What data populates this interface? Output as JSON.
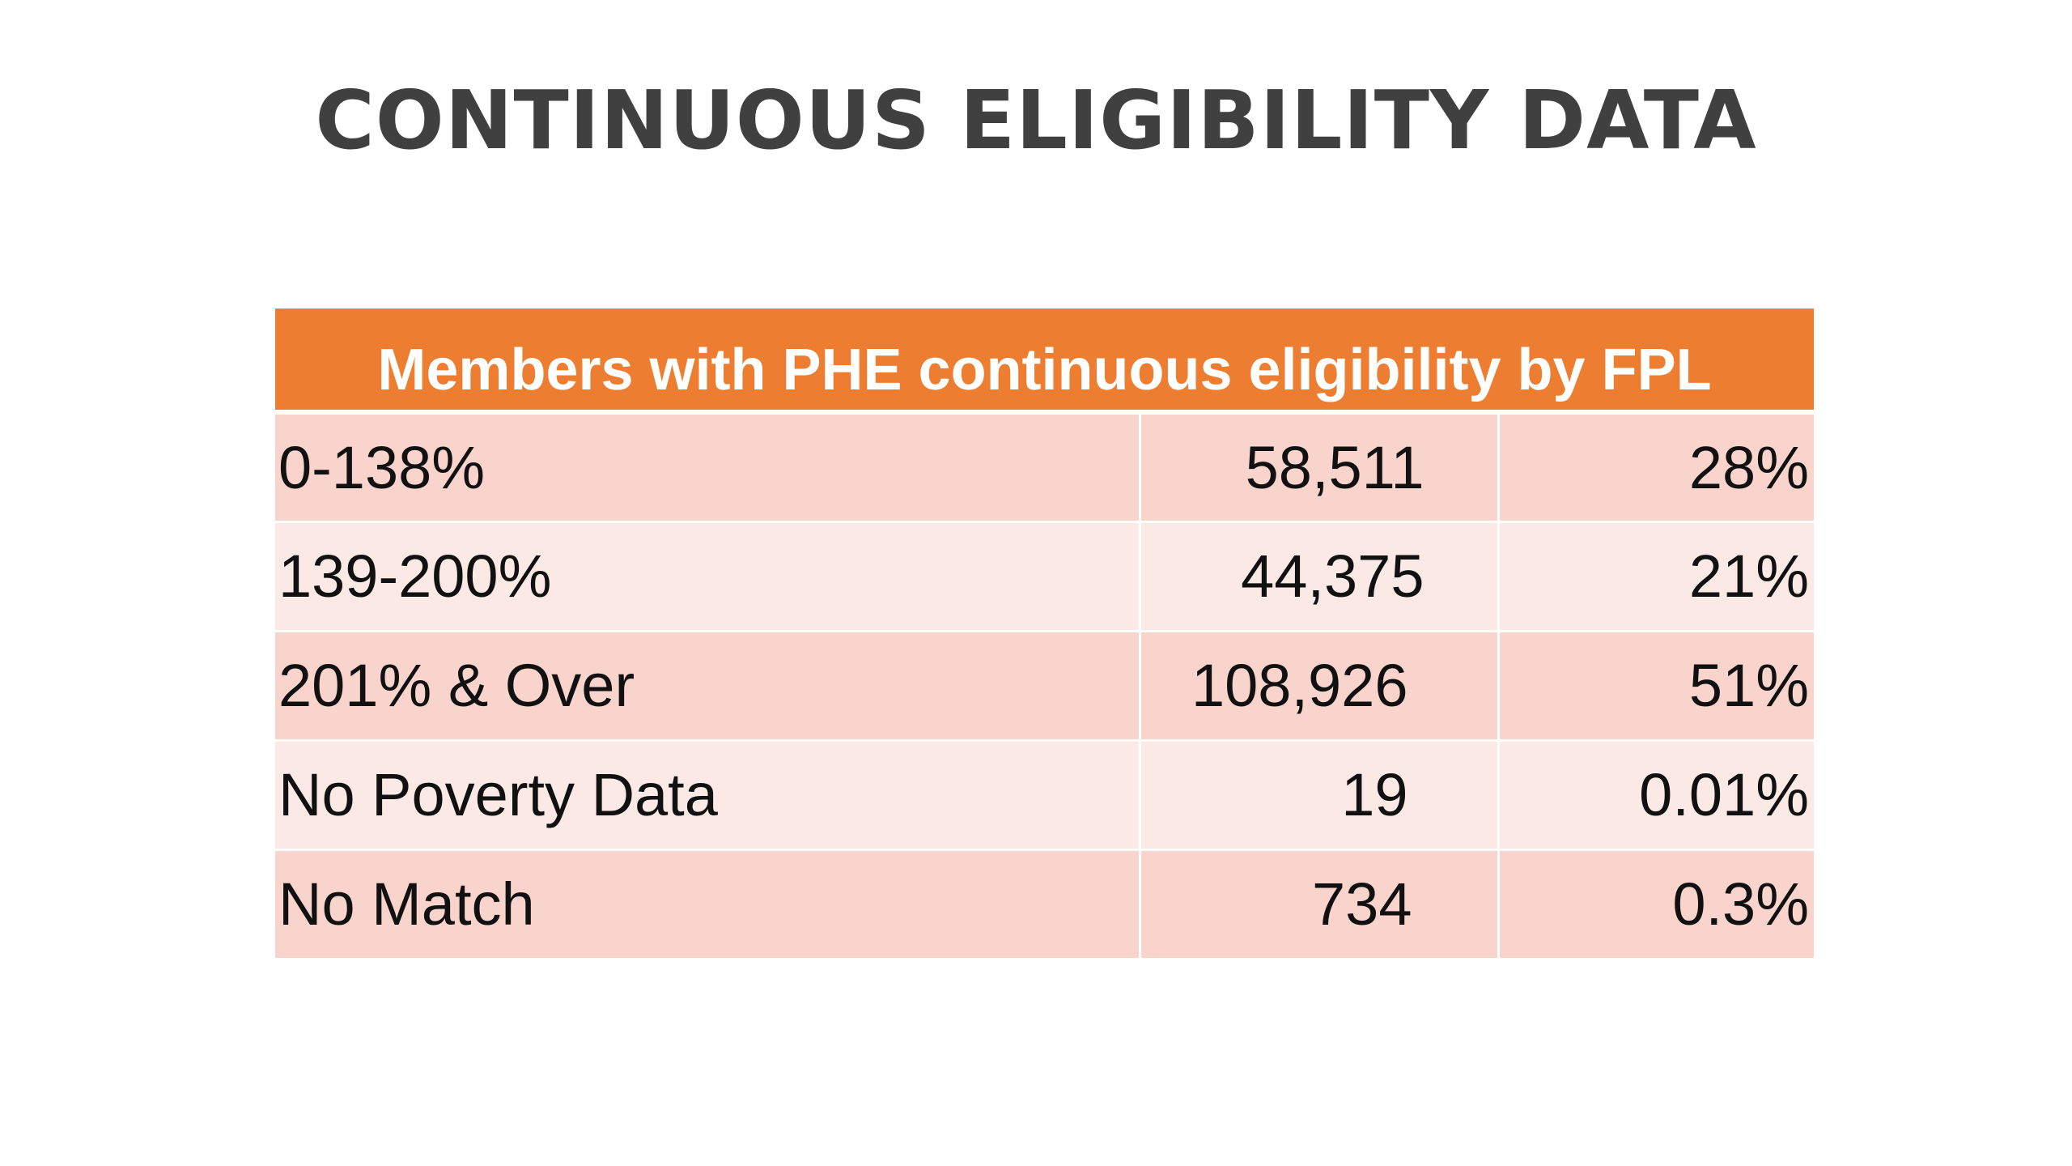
{
  "slide": {
    "title": "CONTINUOUS ELIGIBILITY DATA"
  },
  "table": {
    "header": "Members with PHE continuous eligibility by FPL",
    "rows": [
      {
        "label": "0-138%",
        "count": "58,511",
        "percent": "28%"
      },
      {
        "label": "139-200%",
        "count": "44,375",
        "percent": "21%"
      },
      {
        "label": "201% & Over",
        "count": "108,926",
        "percent": "51%"
      },
      {
        "label": "No Poverty Data",
        "count": "19",
        "percent": "0.01%"
      },
      {
        "label": "No Match",
        "count": "734",
        "percent": "0.3%"
      }
    ]
  },
  "colors": {
    "title_text": "#404040",
    "header_bg": "#ed7d31",
    "header_text": "#ffffff",
    "row_odd_bg": "#f8d4cc",
    "row_even_bg": "#fbe9e6"
  }
}
